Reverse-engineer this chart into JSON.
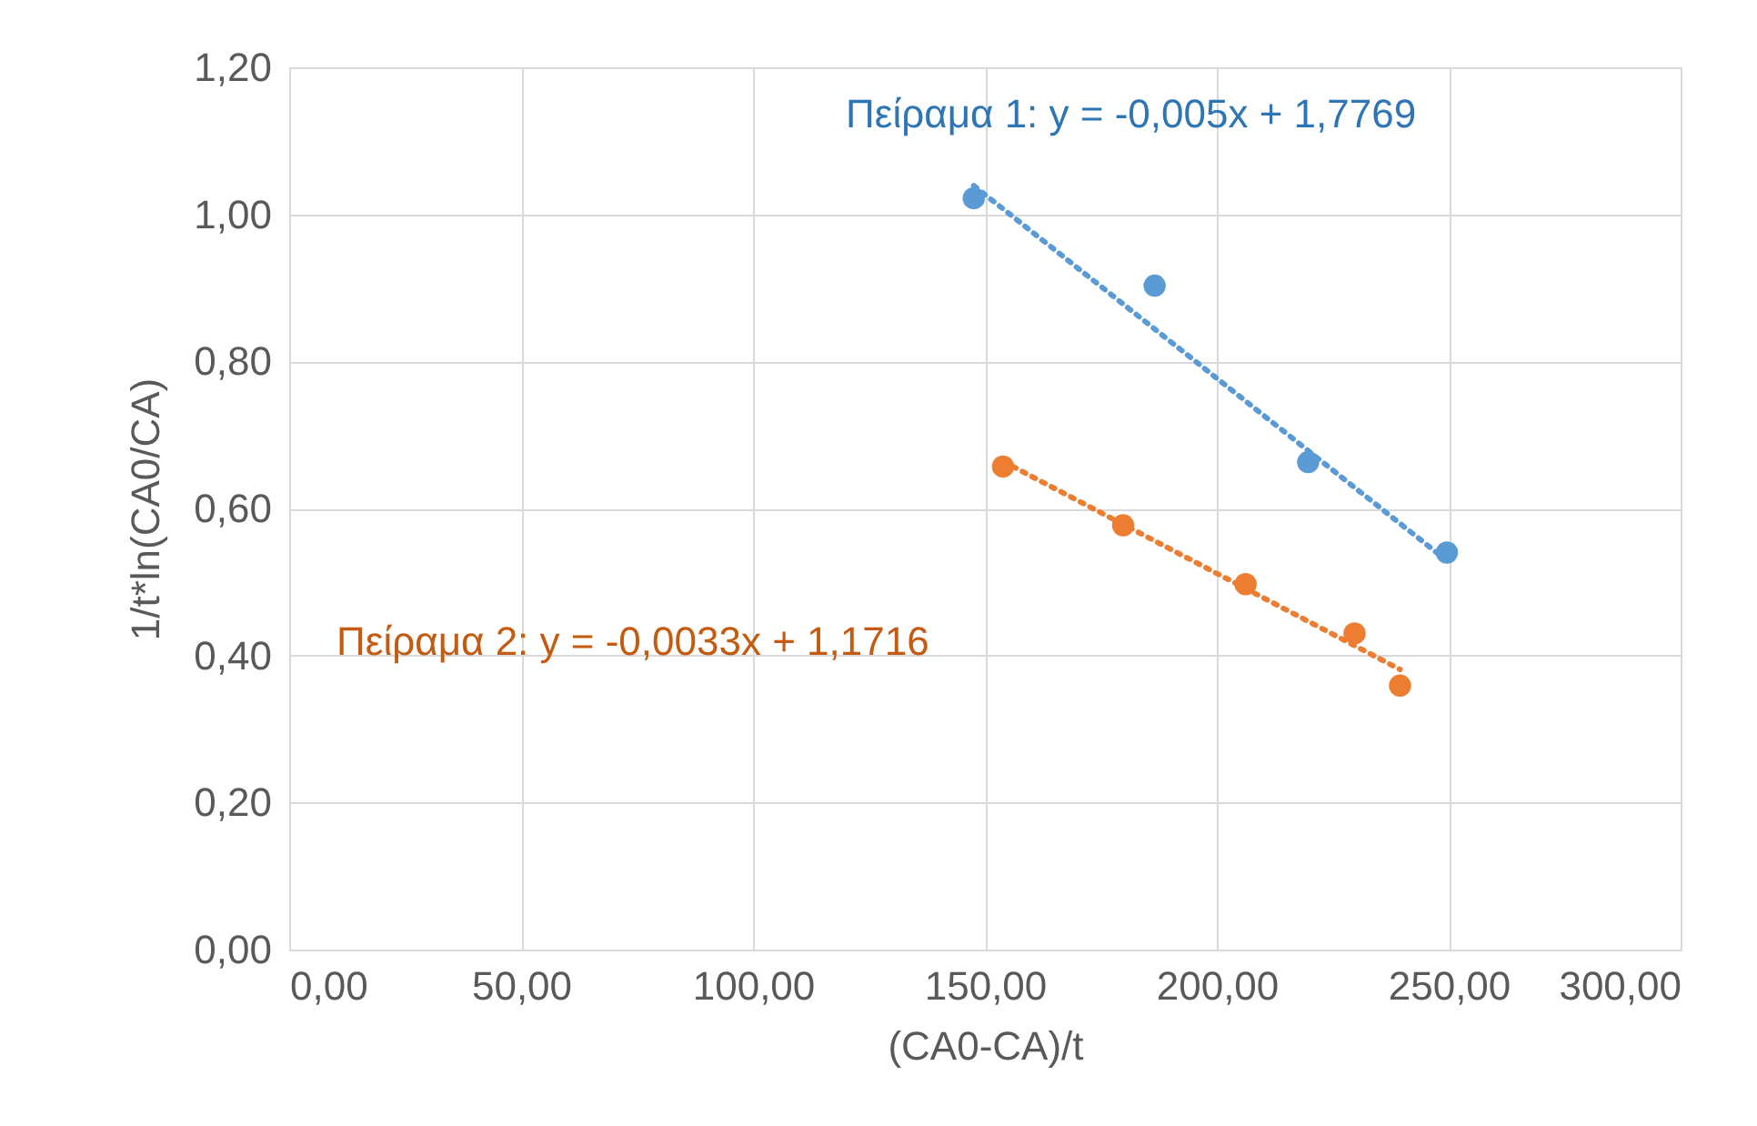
{
  "chart_data": {
    "type": "scatter",
    "xlabel": "(CA0-CA)/t",
    "ylabel": "1/t*ln(CA0/CA)",
    "series": [
      {
        "type": "scatter",
        "color": "#5b9bd5",
        "marker": "circle",
        "x": [
          147.6,
          186.6,
          219.7,
          249.6
        ],
        "values": [
          1.022,
          0.903,
          0.663,
          0.54
        ]
      },
      {
        "type": "scatter",
        "color": "#ed7d31",
        "marker": "circle",
        "x": [
          153.9,
          179.8,
          206.2,
          229.7,
          239.5
        ],
        "values": [
          0.657,
          0.577,
          0.497,
          0.43,
          0.359
        ]
      },
      {
        "type": "line",
        "color": "#5b9bd5",
        "line_style": "dotted",
        "x": [
          147.6,
          249.6
        ],
        "values": [
          1.039,
          0.529
        ]
      },
      {
        "type": "line",
        "color": "#ed7d31",
        "line_style": "dotted",
        "x": [
          153.9,
          239.5
        ],
        "values": [
          0.664,
          0.381
        ]
      }
    ],
    "annotations": [
      "Πείραμα 1: y = -0,005x + 1,7769",
      "Πείραμα 2: y = -0,0033x + 1,1716"
    ],
    "xlim": [
      0,
      300
    ],
    "ylim": [
      0,
      1.2
    ],
    "xticks": [
      {
        "value": 0,
        "label": "0,00"
      },
      {
        "value": 50,
        "label": "50,00"
      },
      {
        "value": 100,
        "label": "100,00"
      },
      {
        "value": 150,
        "label": "150,00"
      },
      {
        "value": 200,
        "label": "200,00"
      },
      {
        "value": 250,
        "label": "250,00"
      },
      {
        "value": 300,
        "label": "300,00"
      }
    ],
    "yticks": [
      {
        "value": 0,
        "label": "0,00"
      },
      {
        "value": 0.2,
        "label": "0,20"
      },
      {
        "value": 0.4,
        "label": "0,40"
      },
      {
        "value": 0.6,
        "label": "0,60"
      },
      {
        "value": 0.8,
        "label": "0,80"
      },
      {
        "value": 1.0,
        "label": "1,00"
      },
      {
        "value": 1.2,
        "label": "1,20"
      }
    ],
    "grid": true
  }
}
